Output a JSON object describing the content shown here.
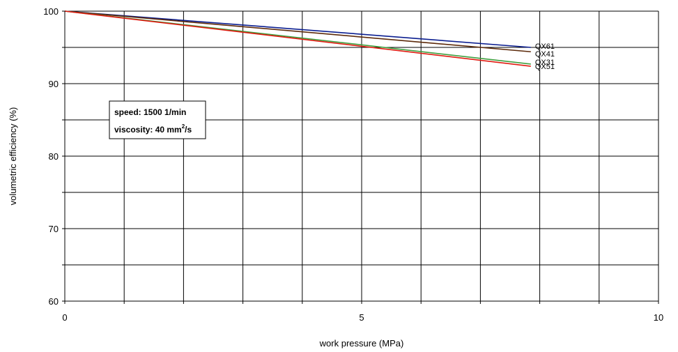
{
  "chart_data": {
    "type": "line",
    "title": "",
    "xlabel": "work pressure (MPa)",
    "ylabel": "volumetric efficiency (%)",
    "xlim": [
      0,
      10
    ],
    "ylim": [
      60,
      100
    ],
    "x_tick_labels": [
      "0",
      "5",
      "10"
    ],
    "y_tick_labels": [
      "60",
      "70",
      "80",
      "90",
      "100"
    ],
    "grid": true,
    "annotation": {
      "line1": "speed: 1500 1/min",
      "line2_prefix": "viscosity: 40 mm",
      "line2_sup": "2",
      "line2_suffix": "/s"
    },
    "series": [
      {
        "name": "QX61",
        "color": "#0a1d8f",
        "x": [
          0,
          7.85
        ],
        "y": [
          100,
          95.0
        ]
      },
      {
        "name": "QX41",
        "color": "#5c2a0a",
        "x": [
          0,
          7.85
        ],
        "y": [
          100,
          94.4
        ]
      },
      {
        "name": "QX31",
        "color": "#3f9f3f",
        "x": [
          0,
          7.85
        ],
        "y": [
          100,
          92.7
        ]
      },
      {
        "name": "QX51",
        "color": "#e01a10",
        "x": [
          0,
          7.85
        ],
        "y": [
          100,
          92.4
        ]
      }
    ]
  }
}
